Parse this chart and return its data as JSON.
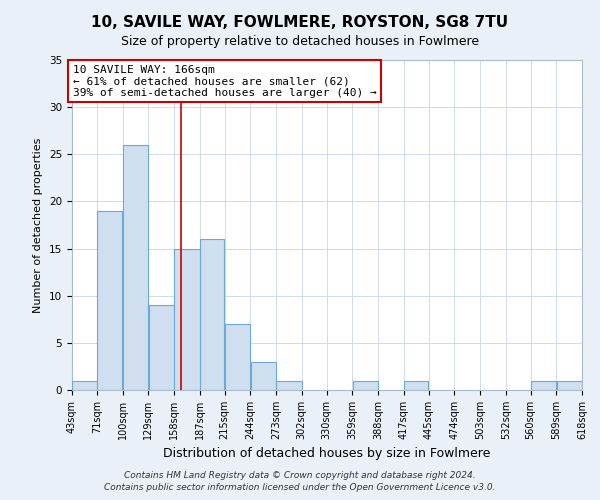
{
  "title": "10, SAVILE WAY, FOWLMERE, ROYSTON, SG8 7TU",
  "subtitle": "Size of property relative to detached houses in Fowlmere",
  "xlabel": "Distribution of detached houses by size in Fowlmere",
  "ylabel": "Number of detached properties",
  "bar_color": "#cfdff0",
  "bar_edge_color": "#6aaad4",
  "bar_left_edges": [
    43,
    71,
    100,
    129,
    158,
    187,
    215,
    244,
    273,
    302,
    330,
    359,
    388,
    417,
    445,
    474,
    503,
    532,
    560,
    589
  ],
  "bar_widths": [
    28,
    29,
    29,
    29,
    29,
    28,
    29,
    29,
    29,
    28,
    29,
    29,
    29,
    28,
    29,
    29,
    29,
    28,
    29,
    29
  ],
  "bar_heights": [
    1,
    19,
    26,
    9,
    15,
    16,
    7,
    3,
    1,
    0,
    0,
    1,
    0,
    1,
    0,
    0,
    0,
    0,
    1,
    1
  ],
  "xlim_left": 43,
  "xlim_right": 618,
  "ylim_top": 35,
  "yticks": [
    0,
    5,
    10,
    15,
    20,
    25,
    30,
    35
  ],
  "xtick_positions": [
    43,
    71,
    100,
    129,
    158,
    187,
    215,
    244,
    273,
    302,
    330,
    359,
    388,
    417,
    445,
    474,
    503,
    532,
    560,
    589,
    618
  ],
  "xtick_labels": [
    "43sqm",
    "71sqm",
    "100sqm",
    "129sqm",
    "158sqm",
    "187sqm",
    "215sqm",
    "244sqm",
    "273sqm",
    "302sqm",
    "330sqm",
    "359sqm",
    "388sqm",
    "417sqm",
    "445sqm",
    "474sqm",
    "503sqm",
    "532sqm",
    "560sqm",
    "589sqm",
    "618sqm"
  ],
  "red_line_x": 166,
  "annotation_title": "10 SAVILE WAY: 166sqm",
  "annotation_line1": "← 61% of detached houses are smaller (62)",
  "annotation_line2": "39% of semi-detached houses are larger (40) →",
  "annotation_box_color": "#ffffff",
  "annotation_box_edge_color": "#cc0000",
  "red_line_color": "#cc0000",
  "footer1": "Contains HM Land Registry data © Crown copyright and database right 2024.",
  "footer2": "Contains public sector information licensed under the Open Government Licence v3.0.",
  "background_color": "#eaf0f8",
  "plot_bg_color": "#ffffff",
  "grid_color": "#c8d4e8",
  "title_fontsize": 11,
  "subtitle_fontsize": 9,
  "xlabel_fontsize": 9,
  "ylabel_fontsize": 8,
  "tick_fontsize": 7,
  "annotation_fontsize": 8,
  "footer_fontsize": 6.5
}
